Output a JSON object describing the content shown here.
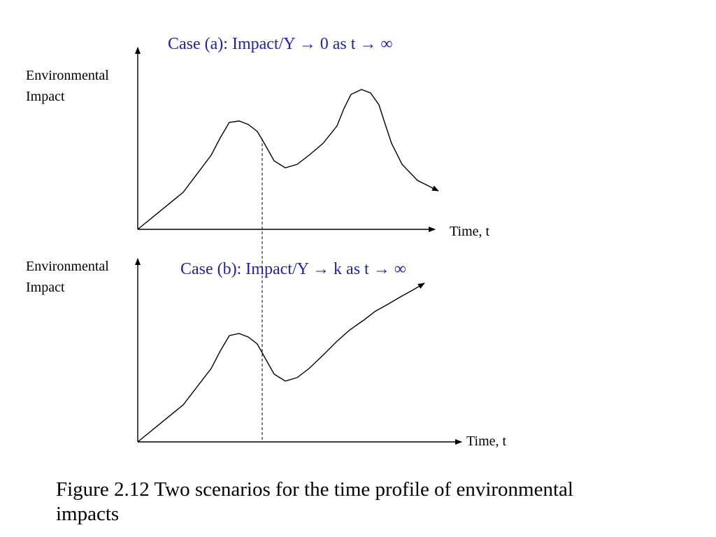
{
  "panel_a": {
    "case_label": "Case (a): Impact/Y → 0 as t → ∞",
    "y_label_line1": "Environmental",
    "y_label_line2": "Impact",
    "x_label": "Time, t"
  },
  "panel_b": {
    "case_label": "Case (b): Impact/Y → k as t → ∞",
    "y_label_line1": "Environmental",
    "y_label_line2": "Impact",
    "x_label": "Time, t"
  },
  "caption_line1": "Figure 2.12  Two scenarios for the time profile of environmental",
  "caption_line2": "impacts",
  "colors": {
    "case_label": "#1f1fbf",
    "lines": "#000000"
  }
}
